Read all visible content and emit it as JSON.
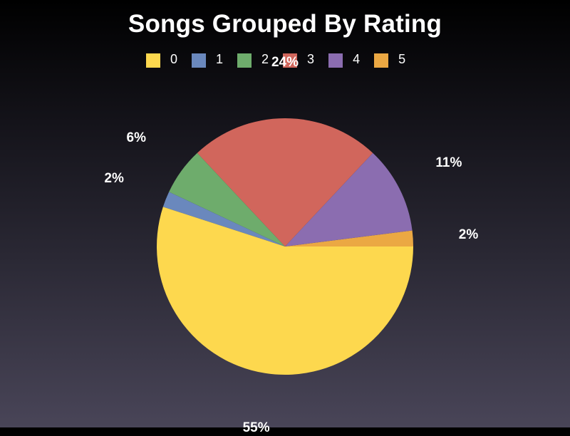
{
  "chart_data": {
    "type": "pie",
    "title": "Songs Grouped By Rating",
    "categories": [
      "0",
      "1",
      "2",
      "3",
      "4",
      "5"
    ],
    "values": [
      55,
      2,
      6,
      24,
      11,
      2
    ],
    "labels": [
      "55%",
      "2%",
      "6%",
      "24%",
      "11%",
      "2%"
    ],
    "colors": [
      "#fdd84e",
      "#6a88bd",
      "#6eac6c",
      "#d1665c",
      "#8b6db0",
      "#eba843"
    ],
    "legend_position": "top",
    "start_angle_deg": 0,
    "direction": "counterclockwise",
    "slice_order": [
      "5",
      "4",
      "3",
      "2",
      "1",
      "0"
    ]
  },
  "legend": {
    "items": [
      {
        "label": "0",
        "color": "#fdd84e"
      },
      {
        "label": "1",
        "color": "#6a88bd"
      },
      {
        "label": "2",
        "color": "#6eac6c"
      },
      {
        "label": "3",
        "color": "#d1665c"
      },
      {
        "label": "4",
        "color": "#8b6db0"
      },
      {
        "label": "5",
        "color": "#eba843"
      }
    ]
  }
}
